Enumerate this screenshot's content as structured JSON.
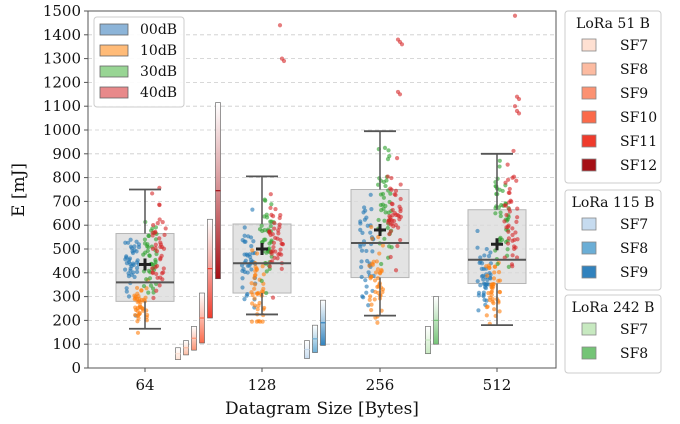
{
  "chart_data": {
    "type": "box+strip+bar",
    "xlabel": "Datagram Size [Bytes]",
    "ylabel": "E [mJ]",
    "ylim": [
      0,
      1500
    ],
    "yticks": [
      0,
      100,
      200,
      300,
      400,
      500,
      600,
      700,
      800,
      900,
      1000,
      1100,
      1200,
      1300,
      1400,
      1500
    ],
    "categories": [
      "64",
      "128",
      "256",
      "512"
    ],
    "grid": "horizontal dashed",
    "boxes": [
      {
        "category": "64",
        "whisker_low": 165,
        "q1": 280,
        "median": 360,
        "q3": 565,
        "whisker_high": 750,
        "mean": 435
      },
      {
        "category": "128",
        "whisker_low": 225,
        "q1": 315,
        "median": 440,
        "q3": 605,
        "whisker_high": 805,
        "mean": 500
      },
      {
        "category": "256",
        "whisker_low": 220,
        "q1": 380,
        "median": 525,
        "q3": 750,
        "whisker_high": 995,
        "mean": 580
      },
      {
        "category": "512",
        "whisker_low": 180,
        "q1": 355,
        "median": 455,
        "q3": 665,
        "whisker_high": 900,
        "mean": 520
      }
    ],
    "outliers": [
      {
        "category": "128",
        "values": [
          1440,
          1300,
          1290
        ]
      },
      {
        "category": "256",
        "values": [
          1380,
          1370,
          1360,
          1160,
          1150
        ]
      },
      {
        "category": "512",
        "values": [
          1480,
          1140,
          1130,
          1100,
          1080,
          1070
        ]
      }
    ],
    "noise_series": [
      {
        "name": "00dB",
        "color": "#1f77b4"
      },
      {
        "name": "10dB",
        "color": "#ff7f0e"
      },
      {
        "name": "30dB",
        "color": "#2ca02c"
      },
      {
        "name": "40dB",
        "color": "#d62728"
      }
    ],
    "strip_points": {
      "64": {
        "00dB": {
          "center": 430,
          "spread": 150
        },
        "10dB": {
          "center": 260,
          "spread": 90
        },
        "30dB": {
          "center": 450,
          "spread": 170
        },
        "40dB": {
          "center": 520,
          "spread": 190
        }
      },
      "128": {
        "00dB": {
          "center": 430,
          "spread": 180
        },
        "10dB": {
          "center": 330,
          "spread": 150
        },
        "30dB": {
          "center": 520,
          "spread": 170
        },
        "40dB": {
          "center": 560,
          "spread": 190
        }
      },
      "256": {
        "00dB": {
          "center": 480,
          "spread": 220
        },
        "10dB": {
          "center": 380,
          "spread": 170
        },
        "30dB": {
          "center": 660,
          "spread": 230
        },
        "40dB": {
          "center": 620,
          "spread": 200
        }
      },
      "512": {
        "00dB": {
          "center": 360,
          "spread": 150
        },
        "10dB": {
          "center": 330,
          "spread": 130
        },
        "30dB": {
          "center": 640,
          "spread": 230
        },
        "40dB": {
          "center": 640,
          "spread": 220
        }
      }
    },
    "sf_bars": [
      {
        "category": "64",
        "group": "LoRa 51 B",
        "sf": "SF7",
        "low": 35,
        "high": 85
      },
      {
        "category": "64",
        "group": "LoRa 51 B",
        "sf": "SF8",
        "low": 55,
        "high": 115
      },
      {
        "category": "64",
        "group": "LoRa 51 B",
        "sf": "SF9",
        "low": 75,
        "high": 175
      },
      {
        "category": "64",
        "group": "LoRa 51 B",
        "sf": "SF10",
        "low": 105,
        "high": 315
      },
      {
        "category": "64",
        "group": "LoRa 51 B",
        "sf": "SF11",
        "low": 210,
        "high": 625
      },
      {
        "category": "64",
        "group": "LoRa 51 B",
        "sf": "SF12",
        "low": 375,
        "high": 1115
      },
      {
        "category": "128",
        "group": "LoRa 115 B",
        "sf": "SF7",
        "low": 40,
        "high": 115
      },
      {
        "category": "128",
        "group": "LoRa 115 B",
        "sf": "SF8",
        "low": 65,
        "high": 180
      },
      {
        "category": "128",
        "group": "LoRa 115 B",
        "sf": "SF9",
        "low": 95,
        "high": 285
      },
      {
        "category": "256",
        "group": "LoRa 242 B",
        "sf": "SF7",
        "low": 60,
        "high": 175
      },
      {
        "category": "256",
        "group": "LoRa 242 B",
        "sf": "SF8",
        "low": 100,
        "high": 300
      }
    ],
    "legends": {
      "noise": {
        "entries": [
          {
            "label": "00dB",
            "color": "#8cb4d8"
          },
          {
            "label": "10dB",
            "color": "#ffbb78"
          },
          {
            "label": "30dB",
            "color": "#98d594"
          },
          {
            "label": "40dB",
            "color": "#e8898a"
          }
        ]
      },
      "lora51": {
        "title": "LoRa 51 B",
        "entries": [
          {
            "label": "SF7",
            "color": "#fee0d2"
          },
          {
            "label": "SF8",
            "color": "#fcbba1"
          },
          {
            "label": "SF9",
            "color": "#fc9272"
          },
          {
            "label": "SF10",
            "color": "#fb6a4a"
          },
          {
            "label": "SF11",
            "color": "#ef3b2c"
          },
          {
            "label": "SF12",
            "color": "#a50f15"
          }
        ]
      },
      "lora115": {
        "title": "LoRa 115 B",
        "entries": [
          {
            "label": "SF7",
            "color": "#c6dbef"
          },
          {
            "label": "SF8",
            "color": "#6baed6"
          },
          {
            "label": "SF9",
            "color": "#3182bd"
          }
        ]
      },
      "lora242": {
        "title": "LoRa 242 B",
        "entries": [
          {
            "label": "SF7",
            "color": "#c7e9c0"
          },
          {
            "label": "SF8",
            "color": "#74c476"
          }
        ]
      }
    }
  }
}
